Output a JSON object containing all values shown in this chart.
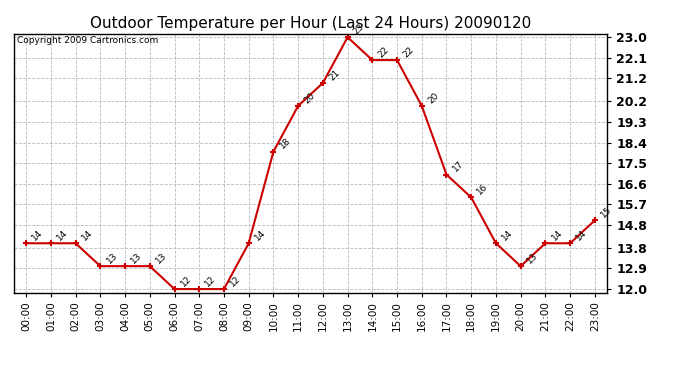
{
  "title": "Outdoor Temperature per Hour (Last 24 Hours) 20090120",
  "copyright": "Copyright 2009 Cartronics.com",
  "hours": [
    "00:00",
    "01:00",
    "02:00",
    "03:00",
    "04:00",
    "05:00",
    "06:00",
    "07:00",
    "08:00",
    "09:00",
    "10:00",
    "11:00",
    "12:00",
    "13:00",
    "14:00",
    "15:00",
    "16:00",
    "17:00",
    "18:00",
    "19:00",
    "20:00",
    "21:00",
    "22:00",
    "23:00"
  ],
  "temps": [
    14,
    14,
    14,
    13,
    13,
    13,
    12,
    12,
    12,
    14,
    18,
    20,
    21,
    23,
    22,
    22,
    20,
    17,
    16,
    14,
    13,
    14,
    14,
    15
  ],
  "ylim_min": 12.0,
  "ylim_max": 23.0,
  "yticks": [
    12.0,
    12.9,
    13.8,
    14.8,
    15.7,
    16.6,
    17.5,
    18.4,
    19.3,
    20.2,
    21.2,
    22.1,
    23.0
  ],
  "line_color": "#cc0000",
  "marker_color": "#cc0000",
  "bg_color": "#ffffff",
  "grid_color": "#bbbbbb",
  "title_fontsize": 11,
  "copyright_fontsize": 6.5,
  "label_fontsize": 6.5,
  "tick_fontsize": 7.5,
  "ytick_fontsize": 9
}
